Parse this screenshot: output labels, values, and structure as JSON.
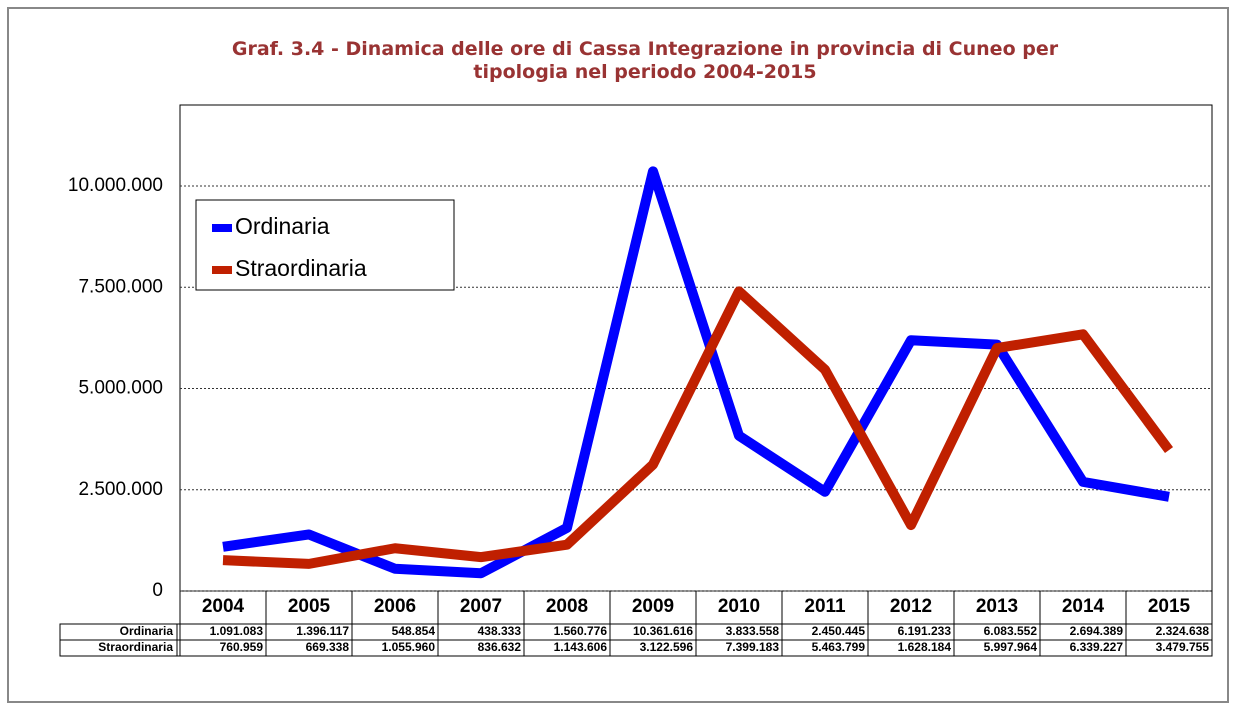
{
  "chart_data": {
    "type": "line",
    "title": "Graf. 3.4 - Dinamica delle ore di Cassa Integrazione in provincia di Cuneo per tipologia nel periodo 2004-2015",
    "categories": [
      "2004",
      "2005",
      "2006",
      "2007",
      "2008",
      "2009",
      "2010",
      "2011",
      "2012",
      "2013",
      "2014",
      "2015"
    ],
    "series": [
      {
        "name": "Ordinaria",
        "color": "#0000ff",
        "values": [
          1091083,
          1396117,
          548854,
          438333,
          1560776,
          10361616,
          3833558,
          2450445,
          6191233,
          6083552,
          2694389,
          2324638
        ],
        "value_labels": [
          "1.091.083",
          "1.396.117",
          "548.854",
          "438.333",
          "1.560.776",
          "10.361.616",
          "3.833.558",
          "2.450.445",
          "6.191.233",
          "6.083.552",
          "2.694.389",
          "2.324.638"
        ]
      },
      {
        "name": "Straordinaria",
        "color": "#c02000",
        "values": [
          760959,
          669338,
          1055960,
          836632,
          1143606,
          3122596,
          7399183,
          5463799,
          1628184,
          5997964,
          6339227,
          3479755
        ],
        "value_labels": [
          "760.959",
          "669.338",
          "1.055.960",
          "836.632",
          "1.143.606",
          "3.122.596",
          "7.399.183",
          "5.463.799",
          "1.628.184",
          "5.997.964",
          "6.339.227",
          "3.479.755"
        ]
      }
    ],
    "ylim": [
      0,
      12000000
    ],
    "yticks": [
      0,
      {
        "value": 2500000,
        "label": "2.500.000"
      },
      {
        "value": 5000000,
        "label": "5.000.000"
      },
      {
        "value": 7500000,
        "label": "7.500.000"
      },
      {
        "value": 10000000,
        "label": "10.000.000"
      }
    ],
    "grid": true,
    "legend": "upper left"
  }
}
